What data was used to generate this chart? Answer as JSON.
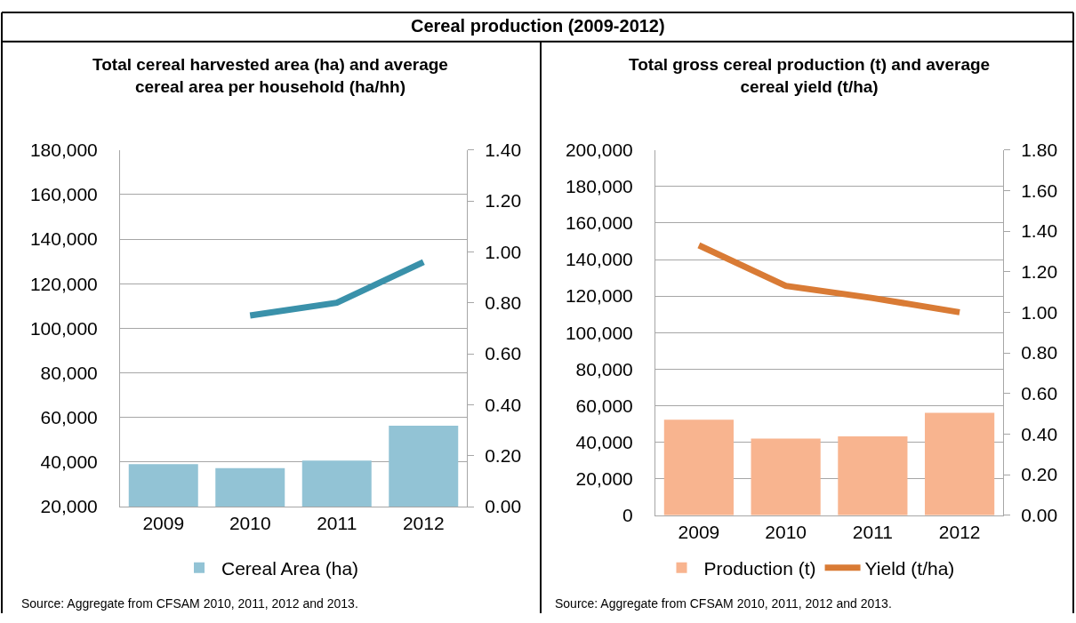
{
  "chart_data": [
    {
      "type": "bar",
      "title": "Total cereal harvested area (ha) and average cereal area per household (ha/hh)",
      "categories": [
        "2009",
        "2010",
        "2011",
        "2012"
      ],
      "series": [
        {
          "name": "Cereal Area (ha)",
          "color": "#92c3d5",
          "values": [
            39100,
            37300,
            40700,
            56300
          ]
        },
        {
          "type": "line",
          "axis": "y2",
          "color": "#3a91aa",
          "values": [
            null,
            0.75,
            0.8,
            0.96
          ]
        }
      ],
      "ylim": [
        20000,
        180000
      ],
      "yticks": [
        {
          "value": 20000,
          "label": "20,000"
        },
        {
          "value": 40000,
          "label": "40,000"
        },
        {
          "value": 60000,
          "label": "60,000"
        },
        {
          "value": 80000,
          "label": "80,000"
        },
        {
          "value": 100000,
          "label": "100,000"
        },
        {
          "value": 120000,
          "label": "120,000"
        },
        {
          "value": 140000,
          "label": "140,000"
        },
        {
          "value": 160000,
          "label": "160,000"
        },
        {
          "value": 180000,
          "label": "180,000"
        }
      ],
      "y2lim": [
        0,
        1.4
      ],
      "y2ticks": [
        {
          "value": 0,
          "label": "0.00"
        },
        {
          "value": 0.2,
          "label": "0.20"
        },
        {
          "value": 0.4,
          "label": "0.40"
        },
        {
          "value": 0.6,
          "label": "0.60"
        },
        {
          "value": 0.8,
          "label": "0.80"
        },
        {
          "value": 1.0,
          "label": "1.00"
        },
        {
          "value": 1.2,
          "label": "1.20"
        },
        {
          "value": 1.4,
          "label": "1.40"
        }
      ],
      "grid": "y",
      "legend": "bottom",
      "marker": "none",
      "annotations": [
        "Cereal production (2009-2012)",
        "Source: Aggregate from CFSAM 2010, 2011, 2012 and 2013."
      ]
    },
    {
      "type": "bar",
      "title": "Total gross cereal production (t) and average cereal yield (t/ha)",
      "categories": [
        "2009",
        "2010",
        "2011",
        "2012"
      ],
      "series": [
        {
          "name": "Production (t)",
          "color": "#f8b48f",
          "values": [
            52300,
            42000,
            43200,
            56100
          ]
        },
        {
          "name": "Yield (t/ha)",
          "type": "line",
          "axis": "y2",
          "color": "#d97b35",
          "values": [
            1.33,
            1.13,
            1.07,
            1.0
          ]
        }
      ],
      "ylim": [
        0,
        200000
      ],
      "yticks": [
        0,
        {
          "value": 20000,
          "label": "20,000"
        },
        {
          "value": 40000,
          "label": "40,000"
        },
        {
          "value": 60000,
          "label": "60,000"
        },
        {
          "value": 80000,
          "label": "80,000"
        },
        {
          "value": 100000,
          "label": "100,000"
        },
        {
          "value": 120000,
          "label": "120,000"
        },
        {
          "value": 140000,
          "label": "140,000"
        },
        {
          "value": 160000,
          "label": "160,000"
        },
        {
          "value": 180000,
          "label": "180,000"
        },
        {
          "value": 200000,
          "label": "200,000"
        }
      ],
      "y2lim": [
        0,
        1.8
      ],
      "y2ticks": [
        {
          "value": 0,
          "label": "0.00"
        },
        {
          "value": 0.2,
          "label": "0.20"
        },
        {
          "value": 0.4,
          "label": "0.40"
        },
        {
          "value": 0.6,
          "label": "0.60"
        },
        {
          "value": 0.8,
          "label": "0.80"
        },
        {
          "value": 1.0,
          "label": "1.00"
        },
        {
          "value": 1.2,
          "label": "1.20"
        },
        {
          "value": 1.4,
          "label": "1.40"
        },
        {
          "value": 1.6,
          "label": "1.60"
        },
        {
          "value": 1.8,
          "label": "1.80"
        }
      ],
      "grid": "y",
      "legend": "bottom",
      "marker": "none",
      "annotations": [
        "Source: Aggregate from CFSAM 2010, 2011, 2012 and 2013."
      ]
    }
  ]
}
